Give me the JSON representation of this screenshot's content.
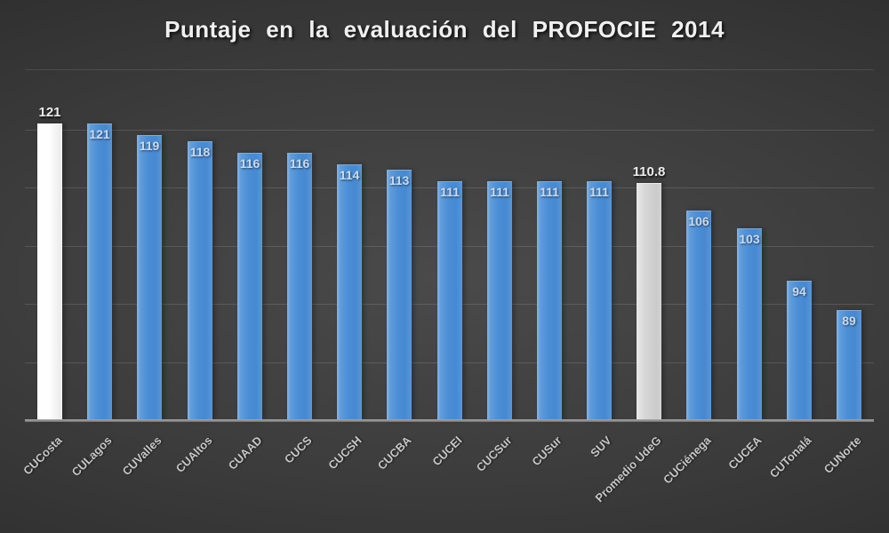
{
  "title": "Puntaje en la evaluación del PROFOCIE 2014",
  "chart_data": {
    "type": "bar",
    "title": "Puntaje en la evaluación del PROFOCIE 2014",
    "xlabel": "",
    "ylabel": "",
    "legend": "none",
    "grid": "horizontal",
    "ylim": [
      70,
      125
    ],
    "gridline_values": [
      80,
      90,
      100,
      110,
      120
    ],
    "y_axis_labels_visible": false,
    "categories": [
      "CUCosta",
      "CULagos",
      "CUValles",
      "CUAltos",
      "CUAAD",
      "CUCS",
      "CUCSH",
      "CUCBA",
      "CUCEI",
      "CUCSur",
      "CUSur",
      "SUV",
      "Promedio UdeG",
      "CUCiénega",
      "CUCEA",
      "CUTonalá",
      "CUNorte"
    ],
    "values": [
      121,
      121,
      119,
      118,
      116,
      116,
      114,
      113,
      111,
      111,
      111,
      111,
      110.8,
      106,
      103,
      94,
      89
    ],
    "value_labels": [
      "121",
      "121",
      "119",
      "118",
      "116",
      "116",
      "114",
      "113",
      "111",
      "111",
      "111",
      "111",
      "110.8",
      "106",
      "103",
      "94",
      "89"
    ],
    "bar_styles": [
      "white",
      "blue",
      "blue",
      "blue",
      "blue",
      "blue",
      "blue",
      "blue",
      "blue",
      "blue",
      "blue",
      "blue",
      "gray",
      "blue",
      "blue",
      "blue",
      "blue"
    ],
    "value_label_positions": [
      "above",
      "inside",
      "inside",
      "inside",
      "inside",
      "inside",
      "inside",
      "inside",
      "inside",
      "inside",
      "inside",
      "inside",
      "above",
      "inside",
      "inside",
      "inside",
      "inside"
    ],
    "colors": {
      "bar_blue": "#4b8ed6",
      "bar_white": "#fdfdfd",
      "bar_gray": "#d2d2d2",
      "background_center": "#4a4a4a",
      "background_edge": "#212121",
      "gridline": "#555555",
      "axis_line": "#8a8a8a",
      "title_text": "#f0f0f0",
      "category_text": "#c6c6c6",
      "value_text_inside": "#ccdaec",
      "value_text_above": "#ececec"
    }
  }
}
